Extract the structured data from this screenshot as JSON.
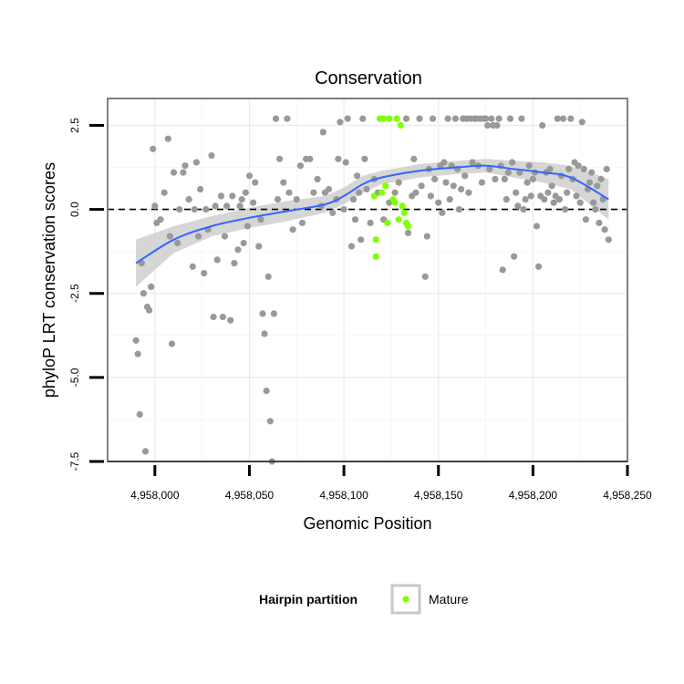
{
  "chart_data": {
    "type": "scatter",
    "title": "Conservation",
    "xlabel": "Genomic Position",
    "ylabel": "phyloP LRT conservation scores",
    "xlim": [
      4957975,
      4958250
    ],
    "ylim": [
      -7.5,
      3.3
    ],
    "x_ticks": [
      4958000,
      4958050,
      4958100,
      4958150,
      4958200,
      4958250
    ],
    "x_tick_labels": [
      "4,958,000",
      "4,958,050",
      "4,958,100",
      "4,958,150",
      "4,958,200",
      "4,958,250"
    ],
    "y_ticks": [
      2.5,
      0.0,
      -2.5,
      -5.0,
      -7.5
    ],
    "y_tick_labels": [
      "2.5",
      "0.0",
      "-2.5",
      "-5.0",
      "-7.5"
    ],
    "reference_line": {
      "y": 0,
      "style": "dashed",
      "color": "#000000"
    },
    "grid": true,
    "legend": {
      "title": "Hairpin partition",
      "position": "bottom",
      "entries": [
        {
          "label": "Mature",
          "color": "#7fff00"
        }
      ]
    },
    "colors": {
      "background_points": "#999999",
      "mature_points": "#7fff00",
      "smooth_line": "#3366ff",
      "ribbon": "#cccccc"
    },
    "smooth": {
      "method": "loess",
      "x": [
        4957990,
        4958010,
        4958030,
        4958050,
        4958070,
        4958090,
        4958100,
        4958110,
        4958120,
        4958140,
        4958160,
        4958175,
        4958190,
        4958205,
        4958220,
        4958240
      ],
      "y": [
        -1.6,
        -0.9,
        -0.5,
        -0.25,
        -0.05,
        0.15,
        0.4,
        0.75,
        0.95,
        1.15,
        1.25,
        1.3,
        1.2,
        1.1,
        0.95,
        0.3
      ],
      "ymin": [
        -2.3,
        -1.3,
        -0.8,
        -0.55,
        -0.35,
        -0.1,
        0.15,
        0.5,
        0.75,
        0.95,
        1.05,
        1.1,
        0.95,
        0.8,
        0.6,
        -0.3
      ],
      "ymax": [
        -0.9,
        -0.5,
        -0.2,
        0.05,
        0.25,
        0.4,
        0.65,
        1.0,
        1.15,
        1.35,
        1.45,
        1.5,
        1.45,
        1.4,
        1.3,
        0.9
      ]
    },
    "series": [
      {
        "name": "",
        "color": "#999999",
        "points": [
          [
            4957990,
            -3.9
          ],
          [
            4957991,
            -4.3
          ],
          [
            4957992,
            -6.1
          ],
          [
            4957993,
            -1.6
          ],
          [
            4957994,
            -2.5
          ],
          [
            4957995,
            -7.2
          ],
          [
            4957996,
            -2.9
          ],
          [
            4957997,
            -3.0
          ],
          [
            4957998,
            -2.3
          ],
          [
            4957999,
            1.8
          ],
          [
            4958000,
            0.1
          ],
          [
            4958001,
            -0.4
          ],
          [
            4958003,
            -0.3
          ],
          [
            4958005,
            0.5
          ],
          [
            4958007,
            2.1
          ],
          [
            4958008,
            -0.8
          ],
          [
            4958009,
            -4.0
          ],
          [
            4958010,
            1.1
          ],
          [
            4958012,
            -1.0
          ],
          [
            4958013,
            0.0
          ],
          [
            4958015,
            1.1
          ],
          [
            4958016,
            1.3
          ],
          [
            4958018,
            0.3
          ],
          [
            4958020,
            -1.7
          ],
          [
            4958021,
            0.0
          ],
          [
            4958022,
            1.4
          ],
          [
            4958023,
            -0.8
          ],
          [
            4958024,
            0.6
          ],
          [
            4958026,
            -1.9
          ],
          [
            4958027,
            0.0
          ],
          [
            4958028,
            -0.6
          ],
          [
            4958030,
            1.6
          ],
          [
            4958031,
            -3.2
          ],
          [
            4958032,
            0.1
          ],
          [
            4958033,
            -1.5
          ],
          [
            4958035,
            0.4
          ],
          [
            4958036,
            -3.2
          ],
          [
            4958037,
            -0.8
          ],
          [
            4958038,
            0.1
          ],
          [
            4958040,
            -3.3
          ],
          [
            4958041,
            0.4
          ],
          [
            4958042,
            -1.6
          ],
          [
            4958044,
            -1.2
          ],
          [
            4958045,
            0.1
          ],
          [
            4958046,
            0.3
          ],
          [
            4958047,
            -1.0
          ],
          [
            4958048,
            0.5
          ],
          [
            4958049,
            -0.5
          ],
          [
            4958050,
            1.0
          ],
          [
            4958052,
            0.2
          ],
          [
            4958053,
            0.8
          ],
          [
            4958055,
            -1.1
          ],
          [
            4958056,
            -0.3
          ],
          [
            4958057,
            -3.1
          ],
          [
            4958058,
            -3.7
          ],
          [
            4958059,
            -5.4
          ],
          [
            4958060,
            -2.0
          ],
          [
            4958061,
            -6.3
          ],
          [
            4958062,
            -7.5
          ],
          [
            4958063,
            -3.1
          ],
          [
            4958064,
            2.7
          ],
          [
            4958065,
            0.3
          ],
          [
            4958066,
            1.5
          ],
          [
            4958068,
            0.8
          ],
          [
            4958070,
            2.7
          ],
          [
            4958071,
            0.5
          ],
          [
            4958073,
            -0.6
          ],
          [
            4958075,
            0.3
          ],
          [
            4958077,
            1.3
          ],
          [
            4958078,
            -0.4
          ],
          [
            4958080,
            1.5
          ],
          [
            4958082,
            1.5
          ],
          [
            4958084,
            0.5
          ],
          [
            4958086,
            0.9
          ],
          [
            4958088,
            0.1
          ],
          [
            4958089,
            2.3
          ],
          [
            4958090,
            0.5
          ],
          [
            4958092,
            0.6
          ],
          [
            4958094,
            -0.1
          ],
          [
            4958096,
            0.3
          ],
          [
            4958097,
            1.5
          ],
          [
            4958098,
            2.6
          ],
          [
            4958100,
            0.0
          ],
          [
            4958101,
            1.4
          ],
          [
            4958102,
            2.7
          ],
          [
            4958104,
            -1.1
          ],
          [
            4958105,
            0.3
          ],
          [
            4958106,
            -0.3
          ],
          [
            4958107,
            1.0
          ],
          [
            4958108,
            0.5
          ],
          [
            4958109,
            -0.9
          ],
          [
            4958110,
            2.7
          ],
          [
            4958111,
            1.5
          ],
          [
            4958112,
            0.6
          ],
          [
            4958114,
            -0.4
          ],
          [
            4958116,
            0.9
          ],
          [
            4958118,
            0.5
          ],
          [
            4958121,
            -0.3
          ],
          [
            4958124,
            0.2
          ],
          [
            4958127,
            0.5
          ],
          [
            4958129,
            0.8
          ],
          [
            4958131,
            0.1
          ],
          [
            4958133,
            2.7
          ],
          [
            4958134,
            -0.7
          ],
          [
            4958136,
            0.4
          ],
          [
            4958137,
            1.5
          ],
          [
            4958138,
            0.5
          ],
          [
            4958140,
            2.7
          ],
          [
            4958141,
            0.7
          ],
          [
            4958143,
            -2.0
          ],
          [
            4958144,
            -0.8
          ],
          [
            4958145,
            1.2
          ],
          [
            4958146,
            0.4
          ],
          [
            4958147,
            2.7
          ],
          [
            4958148,
            0.9
          ],
          [
            4958150,
            0.2
          ],
          [
            4958151,
            1.3
          ],
          [
            4958152,
            -0.1
          ],
          [
            4958153,
            1.4
          ],
          [
            4958154,
            0.8
          ],
          [
            4958155,
            2.7
          ],
          [
            4958156,
            0.3
          ],
          [
            4958157,
            1.3
          ],
          [
            4958158,
            0.7
          ],
          [
            4958159,
            2.7
          ],
          [
            4958160,
            1.2
          ],
          [
            4958161,
            0.0
          ],
          [
            4958162,
            0.6
          ],
          [
            4958163,
            2.7
          ],
          [
            4958164,
            1.0
          ],
          [
            4958165,
            2.7
          ],
          [
            4958166,
            0.5
          ],
          [
            4958167,
            2.7
          ],
          [
            4958168,
            1.4
          ],
          [
            4958169,
            2.7
          ],
          [
            4958170,
            2.7
          ],
          [
            4958171,
            1.3
          ],
          [
            4958172,
            2.7
          ],
          [
            4958173,
            0.8
          ],
          [
            4958174,
            2.7
          ],
          [
            4958175,
            2.7
          ],
          [
            4958176,
            2.5
          ],
          [
            4958177,
            1.2
          ],
          [
            4958178,
            2.7
          ],
          [
            4958179,
            2.5
          ],
          [
            4958180,
            0.9
          ],
          [
            4958181,
            2.5
          ],
          [
            4958182,
            2.7
          ],
          [
            4958183,
            1.3
          ],
          [
            4958184,
            -1.8
          ],
          [
            4958185,
            0.9
          ],
          [
            4958186,
            0.3
          ],
          [
            4958187,
            1.1
          ],
          [
            4958188,
            2.7
          ],
          [
            4958189,
            1.4
          ],
          [
            4958190,
            -1.4
          ],
          [
            4958191,
            0.5
          ],
          [
            4958192,
            0.1
          ],
          [
            4958193,
            1.1
          ],
          [
            4958194,
            2.7
          ],
          [
            4958195,
            0.0
          ],
          [
            4958196,
            0.3
          ],
          [
            4958197,
            0.8
          ],
          [
            4958198,
            1.3
          ],
          [
            4958199,
            0.4
          ],
          [
            4958200,
            0.9
          ],
          [
            4958201,
            1.1
          ],
          [
            4958202,
            -0.5
          ],
          [
            4958203,
            -1.7
          ],
          [
            4958204,
            0.4
          ],
          [
            4958205,
            2.5
          ],
          [
            4958206,
            0.3
          ],
          [
            4958207,
            1.1
          ],
          [
            4958208,
            0.5
          ],
          [
            4958209,
            1.2
          ],
          [
            4958210,
            0.7
          ],
          [
            4958211,
            0.2
          ],
          [
            4958212,
            0.4
          ],
          [
            4958213,
            2.7
          ],
          [
            4958214,
            0.3
          ],
          [
            4958215,
            1.0
          ],
          [
            4958216,
            2.7
          ],
          [
            4958217,
            0.0
          ],
          [
            4958218,
            0.5
          ],
          [
            4958219,
            1.2
          ],
          [
            4958220,
            2.7
          ],
          [
            4958221,
            0.9
          ],
          [
            4958222,
            1.4
          ],
          [
            4958223,
            0.4
          ],
          [
            4958224,
            1.3
          ],
          [
            4958225,
            0.2
          ],
          [
            4958226,
            2.6
          ],
          [
            4958227,
            1.2
          ],
          [
            4958228,
            -0.3
          ],
          [
            4958229,
            0.6
          ],
          [
            4958230,
            0.8
          ],
          [
            4958231,
            1.1
          ],
          [
            4958232,
            0.2
          ],
          [
            4958233,
            0.0
          ],
          [
            4958234,
            0.7
          ],
          [
            4958235,
            -0.4
          ],
          [
            4958236,
            0.9
          ],
          [
            4958237,
            0.3
          ],
          [
            4958238,
            -0.6
          ],
          [
            4958239,
            1.2
          ],
          [
            4958240,
            -0.9
          ]
        ]
      },
      {
        "name": "Mature",
        "color": "#7fff00",
        "points": [
          [
            4958116,
            0.4
          ],
          [
            4958117,
            -0.9
          ],
          [
            4958117,
            -1.4
          ],
          [
            4958119,
            2.7
          ],
          [
            4958120,
            0.5
          ],
          [
            4958121,
            2.7
          ],
          [
            4958122,
            0.7
          ],
          [
            4958123,
            -0.4
          ],
          [
            4958124,
            2.7
          ],
          [
            4958126,
            0.3
          ],
          [
            4958127,
            0.2
          ],
          [
            4958128,
            2.7
          ],
          [
            4958129,
            -0.3
          ],
          [
            4958130,
            2.5
          ],
          [
            4958131,
            0.1
          ],
          [
            4958132,
            -0.1
          ],
          [
            4958133,
            -0.4
          ],
          [
            4958134,
            -0.5
          ]
        ]
      }
    ]
  }
}
